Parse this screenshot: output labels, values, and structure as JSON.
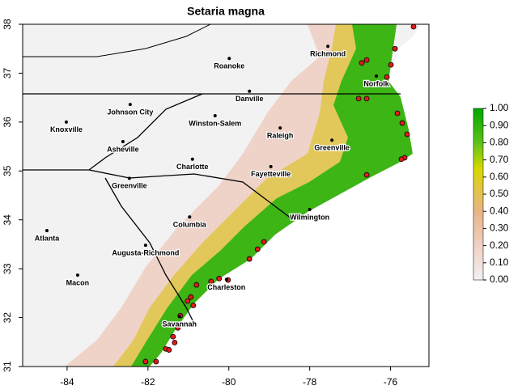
{
  "chart_data": {
    "type": "map",
    "title": "Setaria magna",
    "xlim": [
      -85.1,
      -75.05
    ],
    "ylim": [
      31,
      38
    ],
    "xticks": [
      -84,
      -82,
      -80,
      -78,
      -76
    ],
    "yticks": [
      31,
      32,
      33,
      34,
      35,
      36,
      37,
      38
    ],
    "colorbar": {
      "lim": [
        0,
        1
      ],
      "ticks": [
        {
          "value": 0,
          "label": "0.00"
        },
        {
          "value": 0.1,
          "label": "0.10"
        },
        {
          "value": 0.2,
          "label": "0.20"
        },
        {
          "value": 0.3,
          "label": "0.30"
        },
        {
          "value": 0.4,
          "label": "0.40"
        },
        {
          "value": 0.5,
          "label": "0.50"
        },
        {
          "value": 0.6,
          "label": "0.60"
        },
        {
          "value": 0.7,
          "label": "0.70"
        },
        {
          "value": 0.8,
          "label": "0.80"
        },
        {
          "value": 0.9,
          "label": "0.90"
        },
        {
          "value": 1,
          "label": "1.00"
        }
      ]
    },
    "cities": {
      "names": [
        "Richmond",
        "Roanoke",
        "Norfolk",
        "Danville",
        "Johnson City",
        "Winston-Salem",
        "Knoxville",
        "Raleigh",
        "Greenville",
        "Asheville",
        "Charlotte",
        "Fayetteville",
        "Greenville",
        "Wilmington",
        "Columbia",
        "Atlanta",
        "Augusta-Richmond",
        "Charleston",
        "Macon",
        "Savannah"
      ],
      "lon": [
        -77.55,
        -79.99,
        -76.35,
        -79.49,
        -82.44,
        -80.34,
        -84.02,
        -78.73,
        -77.45,
        -82.62,
        -80.9,
        -78.96,
        -82.46,
        -78.0,
        -80.97,
        -84.5,
        -82.06,
        -80.06,
        -83.74,
        -81.22
      ],
      "lat": [
        37.55,
        37.3,
        36.94,
        36.63,
        36.36,
        36.13,
        36.0,
        35.88,
        35.63,
        35.6,
        35.24,
        35.09,
        34.85,
        34.21,
        34.06,
        33.78,
        33.48,
        32.78,
        32.87,
        32.02
      ]
    },
    "occurrences": {
      "lon": [
        -75.43,
        -75.89,
        -75.99,
        -76.59,
        -76.71,
        -76.09,
        -76.79,
        -76.59,
        -75.83,
        -75.71,
        -75.59,
        -75.65,
        -75.73,
        -76.59,
        -79.13,
        -79.29,
        -79.49,
        -80.24,
        -80.44,
        -80.8,
        -80.02,
        -80.94,
        -81.02,
        -80.88,
        -81.2,
        -81.26,
        -81.38,
        -81.34,
        -81.56,
        -81.48,
        -82.06,
        -81.8
      ],
      "lat": [
        37.95,
        37.5,
        37.17,
        37.27,
        37.21,
        36.92,
        36.48,
        36.48,
        36.18,
        35.98,
        35.75,
        35.27,
        35.24,
        34.92,
        33.55,
        33.4,
        33.2,
        32.8,
        32.74,
        32.67,
        32.77,
        32.42,
        32.34,
        32.25,
        32.04,
        31.79,
        31.61,
        31.49,
        31.36,
        31.34,
        31.1,
        31.1
      ]
    },
    "point_color": "#e31a1c"
  }
}
